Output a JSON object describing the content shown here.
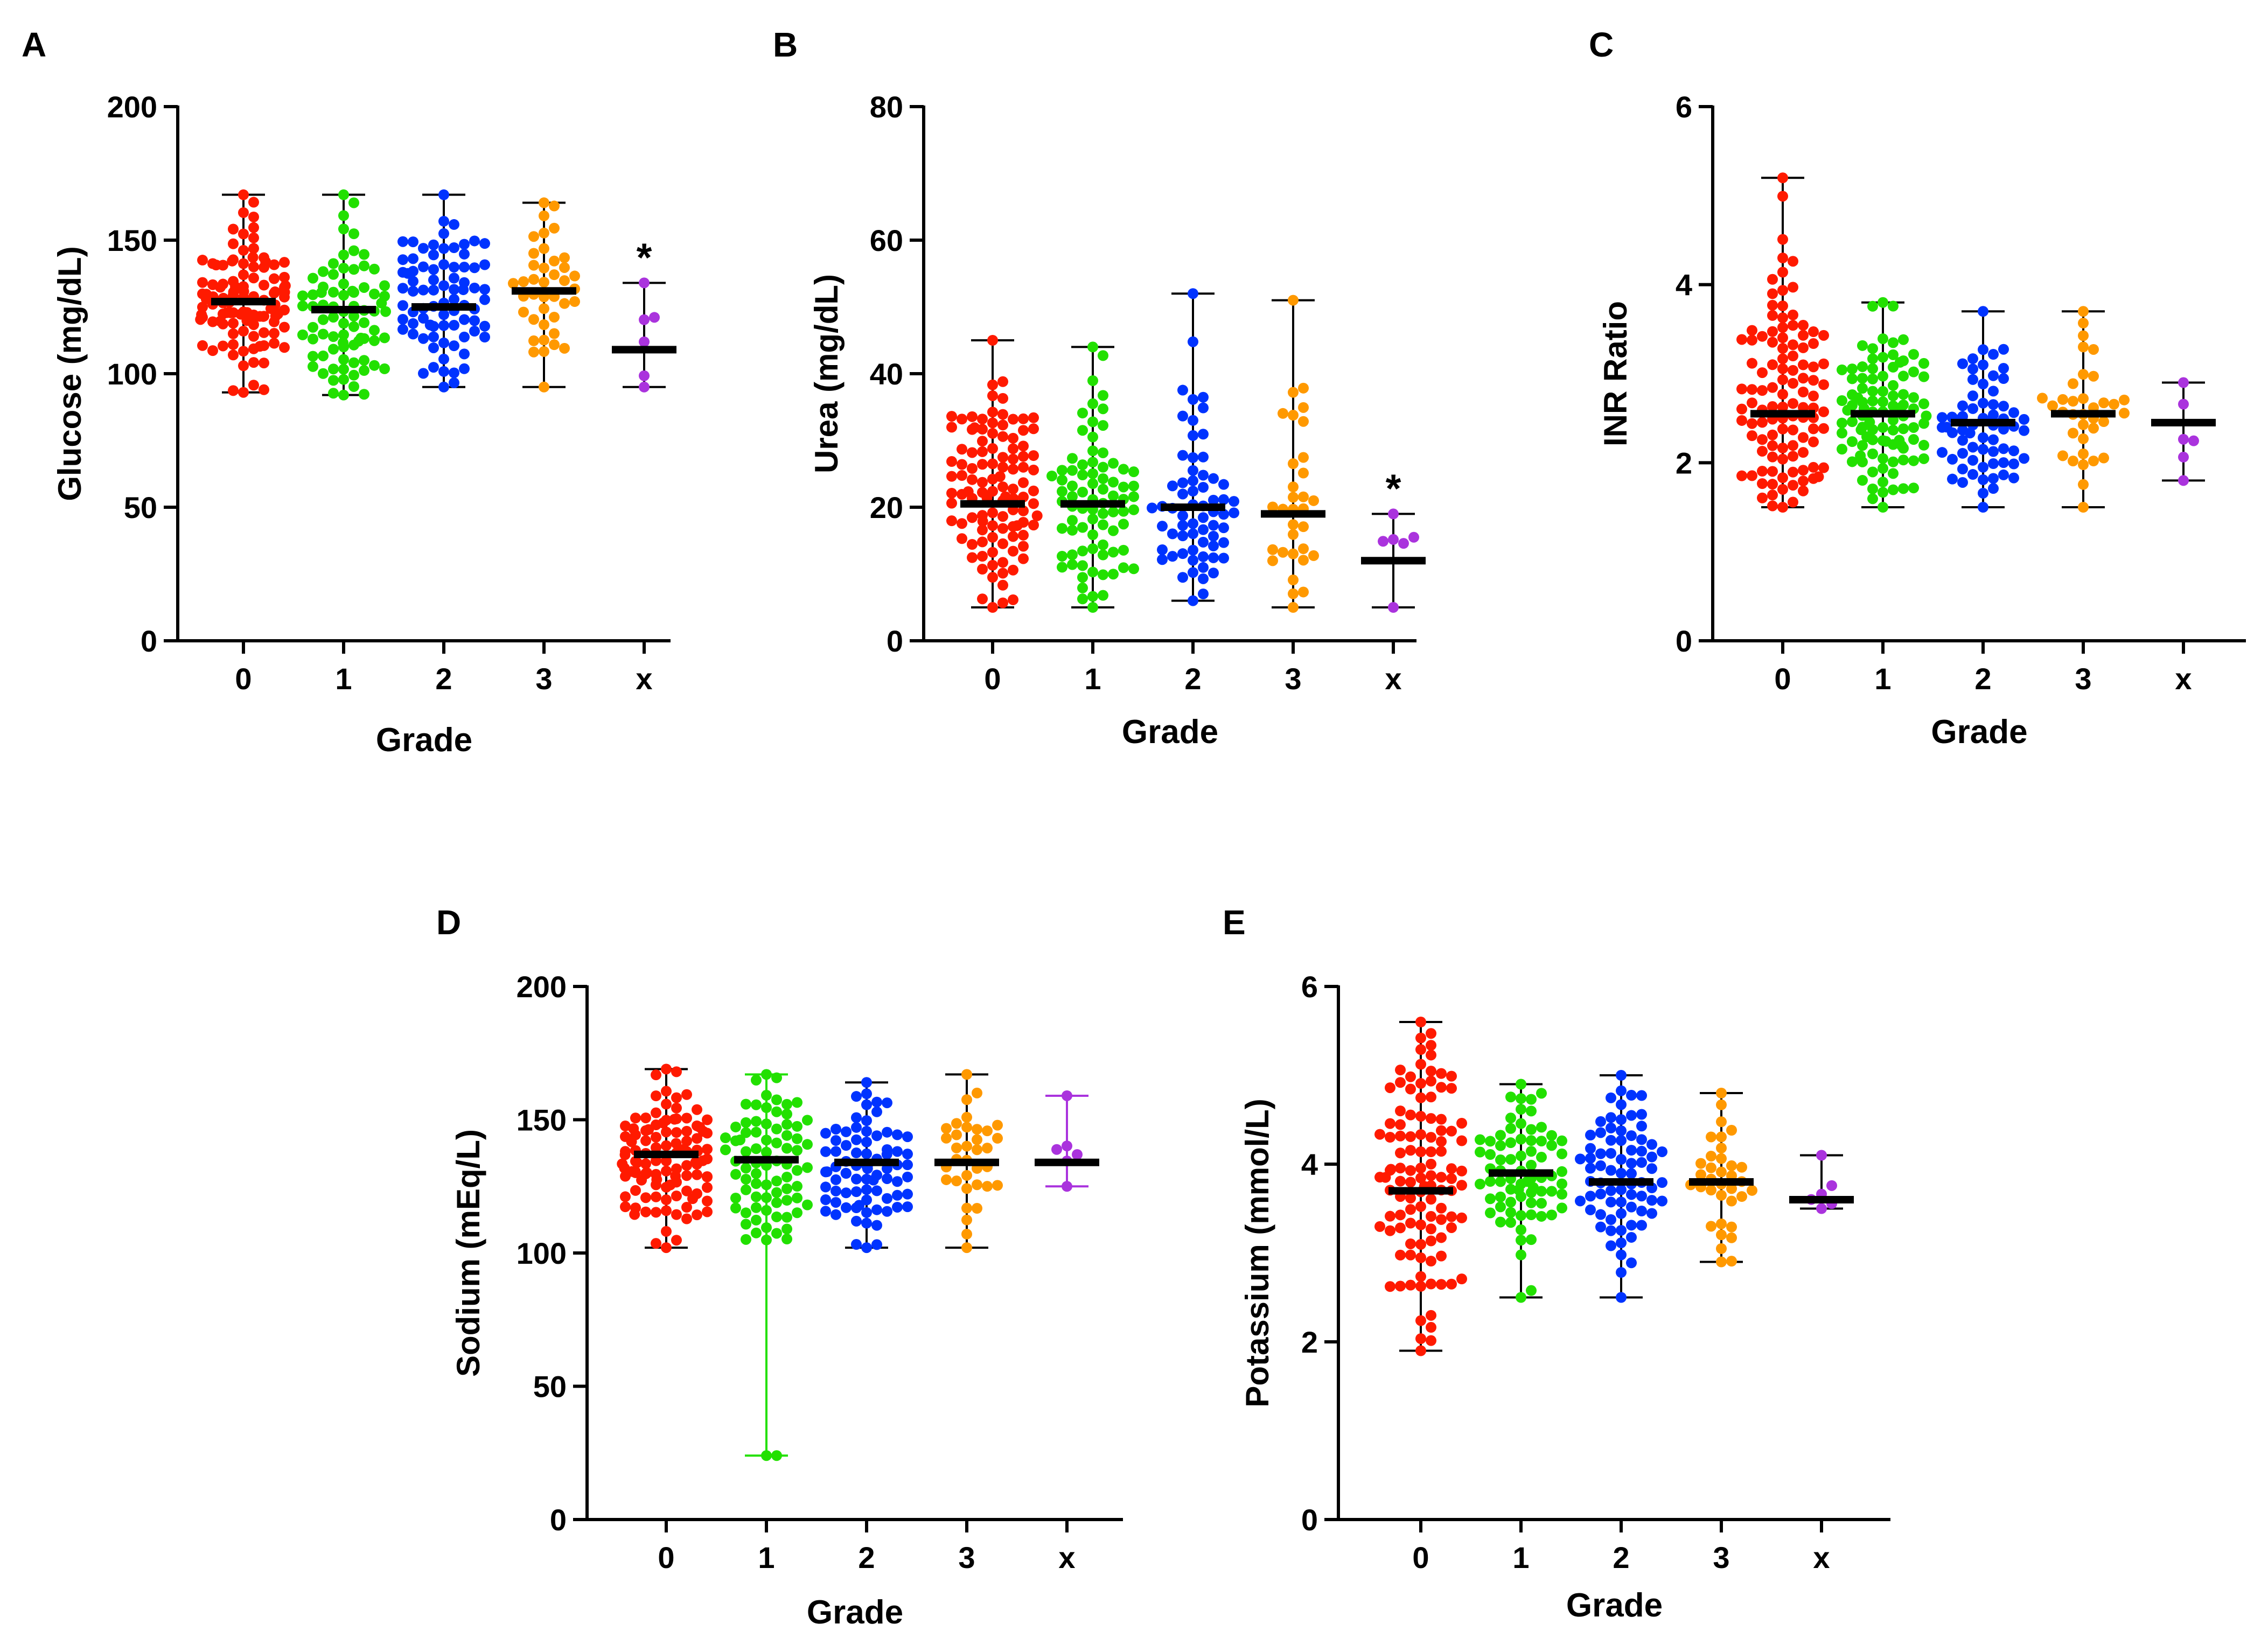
{
  "chart_data": [
    {
      "panel": "A",
      "type": "scatter",
      "title": "",
      "xlabel": "Grade",
      "ylabel": "Glucose (mg/dL)",
      "ylim": [
        0,
        200
      ],
      "yticks": [
        0,
        50,
        100,
        150,
        200
      ],
      "categories": [
        "0",
        "1",
        "2",
        "3",
        "x"
      ],
      "colors": [
        "#ff1a00",
        "#22e000",
        "#0033ff",
        "#ff9900",
        "#aa33dd"
      ],
      "n_points": [
        110,
        80,
        80,
        40,
        6
      ],
      "mean": [
        127,
        124,
        125,
        131,
        109
      ],
      "min": [
        93,
        92,
        95,
        95,
        95
      ],
      "max": [
        167,
        167,
        167,
        164,
        134
      ],
      "annotations": [
        {
          "category": "x",
          "text": "*"
        }
      ]
    },
    {
      "panel": "B",
      "type": "scatter",
      "title": "",
      "xlabel": "Grade",
      "ylabel": "Urea (mg/dL)",
      "ylim": [
        0,
        80
      ],
      "yticks": [
        0,
        20,
        40,
        60,
        80
      ],
      "categories": [
        "0",
        "1",
        "2",
        "3",
        "x"
      ],
      "colors": [
        "#ff1a00",
        "#22e000",
        "#0033ff",
        "#ff9900",
        "#aa33dd"
      ],
      "n_points": [
        110,
        80,
        65,
        32,
        6
      ],
      "mean": [
        20.5,
        20.5,
        20,
        19,
        12
      ],
      "min": [
        5,
        5,
        6,
        5,
        5
      ],
      "max": [
        45,
        44,
        52,
        51,
        19
      ],
      "annotations": [
        {
          "category": "x",
          "text": "*"
        }
      ]
    },
    {
      "panel": "C",
      "type": "scatter",
      "title": "",
      "xlabel": "Grade",
      "ylabel": "INR Ratio",
      "ylim": [
        0,
        6
      ],
      "yticks": [
        0,
        2,
        4,
        6
      ],
      "categories": [
        "0",
        "1",
        "2",
        "3",
        "x"
      ],
      "colors": [
        "#ff1a00",
        "#22e000",
        "#0033ff",
        "#ff9900",
        "#aa33dd"
      ],
      "n_points": [
        110,
        100,
        70,
        35,
        6
      ],
      "mean": [
        2.55,
        2.55,
        2.45,
        2.55,
        2.45
      ],
      "min": [
        1.5,
        1.5,
        1.5,
        1.5,
        1.8
      ],
      "max": [
        5.2,
        3.8,
        3.7,
        3.7,
        2.9
      ],
      "annotations": []
    },
    {
      "panel": "D",
      "type": "scatter",
      "title": "",
      "xlabel": "Grade",
      "ylabel": "Sodium (mEq/L)",
      "ylim": [
        0,
        200
      ],
      "yticks": [
        0,
        50,
        100,
        150,
        200
      ],
      "categories": [
        "0",
        "1",
        "2",
        "3",
        "x"
      ],
      "colors": [
        "#ff1a00",
        "#22e000",
        "#0033ff",
        "#ff9900",
        "#aa33dd"
      ],
      "n_points": [
        110,
        80,
        80,
        35,
        6
      ],
      "mean": [
        137,
        135,
        134,
        134,
        134
      ],
      "min": [
        102,
        24,
        102,
        102,
        125
      ],
      "max": [
        169,
        167,
        164,
        167,
        159
      ],
      "annotations": []
    },
    {
      "panel": "E",
      "type": "scatter",
      "title": "",
      "xlabel": "Grade",
      "ylabel": "Potassium (mmol/L)",
      "ylim": [
        0,
        6
      ],
      "yticks": [
        0,
        2,
        4,
        6
      ],
      "categories": [
        "0",
        "1",
        "2",
        "3",
        "x"
      ],
      "colors": [
        "#ff1a00",
        "#22e000",
        "#0033ff",
        "#ff9900",
        "#aa33dd"
      ],
      "n_points": [
        110,
        75,
        75,
        35,
        6
      ],
      "mean": [
        3.7,
        3.9,
        3.8,
        3.8,
        3.6
      ],
      "min": [
        1.9,
        2.5,
        2.5,
        2.9,
        3.5
      ],
      "max": [
        5.6,
        4.9,
        5.0,
        4.8,
        4.1
      ],
      "annotations": []
    }
  ]
}
